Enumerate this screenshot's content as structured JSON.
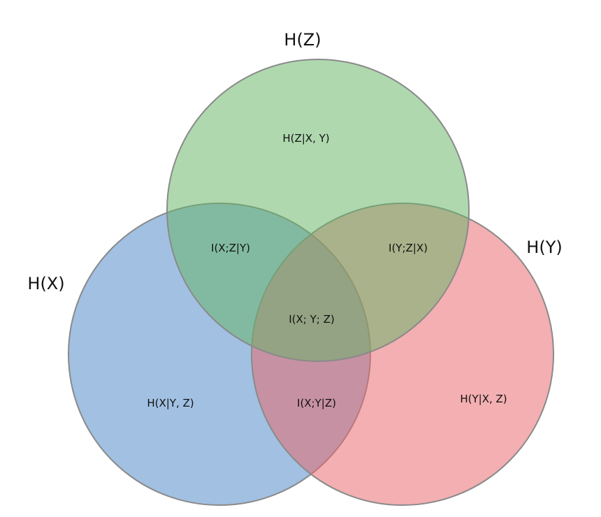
{
  "sets": {
    "x": {
      "label": "H(X)",
      "color": "#4a86c8"
    },
    "y": {
      "label": "H(Y)",
      "color": "#e8666a"
    },
    "z": {
      "label": "H(Z)",
      "color": "#66b566"
    }
  },
  "outline_color": "#8a8a8a",
  "fill_opacity": 0.52,
  "regions": {
    "x_only": "H(X|Y, Z)",
    "y_only": "H(Y|X, Z)",
    "z_only": "H(Z|X, Y)",
    "xz": "I(X;Z|Y)",
    "yz": "I(Y;Z|X)",
    "xy": "I(X;Y|Z)",
    "xyz": "I(X; Y; Z)"
  }
}
